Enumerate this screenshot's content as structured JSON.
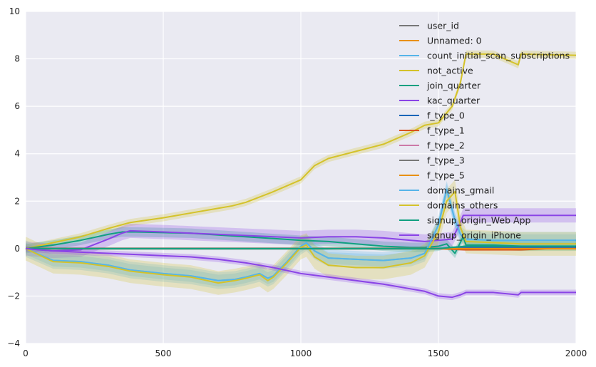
{
  "chart_data": {
    "type": "line",
    "title": "",
    "xlabel": "",
    "ylabel": "",
    "xlim": [
      0,
      2000
    ],
    "ylim": [
      -4,
      10
    ],
    "xticks": [
      0,
      500,
      1000,
      1500,
      2000
    ],
    "yticks": [
      -4,
      -2,
      0,
      2,
      4,
      6,
      8,
      10
    ],
    "grid": true,
    "legend_position": "top-right",
    "series": [
      {
        "name": "user_id",
        "color": "#777777",
        "x": [
          0,
          2000
        ],
        "y": [
          0,
          0
        ],
        "band": 0.02
      },
      {
        "name": "Unnamed: 0",
        "color": "#e8900f",
        "x": [
          0,
          2000
        ],
        "y": [
          0,
          0
        ],
        "band": 0.02
      },
      {
        "name": "count_initial_scan_subscriptions",
        "color": "#56b4e9",
        "x": [
          0,
          100,
          200,
          300,
          380,
          500,
          600,
          700,
          760,
          800,
          850,
          880,
          900,
          950,
          1000,
          1020,
          1050,
          1100,
          1200,
          1300,
          1400,
          1450,
          1480,
          1500,
          1530,
          1560,
          1580,
          1600,
          1700,
          1800,
          2000
        ],
        "y": [
          0,
          -0.5,
          -0.55,
          -0.7,
          -0.9,
          -1.05,
          -1.15,
          -1.35,
          -1.3,
          -1.2,
          -1.05,
          -1.25,
          -1.15,
          -0.55,
          0.1,
          0.25,
          -0.1,
          -0.4,
          -0.45,
          -0.5,
          -0.4,
          -0.2,
          0.5,
          1.0,
          2.5,
          1.2,
          0.6,
          0.4,
          0.35,
          0.35,
          0.35
        ],
        "band": 0.25
      },
      {
        "name": "not_active",
        "color": "#d4c22a",
        "x": [
          0,
          100,
          200,
          300,
          380,
          500,
          600,
          700,
          750,
          800,
          900,
          1000,
          1050,
          1100,
          1200,
          1300,
          1400,
          1450,
          1500,
          1550,
          1580,
          1600,
          1700,
          1790,
          1800,
          2000
        ],
        "y": [
          0,
          0.25,
          0.5,
          0.85,
          1.1,
          1.3,
          1.5,
          1.7,
          1.8,
          1.95,
          2.4,
          2.9,
          3.5,
          3.8,
          4.1,
          4.4,
          4.9,
          5.2,
          5.3,
          6.0,
          7.0,
          8.2,
          8.2,
          7.75,
          8.2,
          8.15
        ],
        "band": 0.15
      },
      {
        "name": "join_quarter",
        "color": "#10a080",
        "x": [
          0,
          100,
          200,
          300,
          350,
          400,
          600,
          800,
          1000,
          1100,
          1200,
          1300,
          1400,
          1450,
          1500,
          1530,
          1560,
          1590,
          1600,
          1700,
          1800,
          2000
        ],
        "y": [
          0,
          0.15,
          0.35,
          0.6,
          0.7,
          0.7,
          0.65,
          0.5,
          0.35,
          0.3,
          0.2,
          0.1,
          0.05,
          0.05,
          0.1,
          0.2,
          -0.2,
          0.5,
          0.15,
          0.15,
          0.1,
          0.1
        ],
        "band": 0.2
      },
      {
        "name": "kac_quarter",
        "color": "#8a44e6",
        "x": [
          0,
          100,
          200,
          300,
          350,
          380,
          500,
          600,
          800,
          1000,
          1100,
          1200,
          1300,
          1400,
          1450,
          1500,
          1550,
          1580,
          1590,
          1600,
          1700,
          1800,
          2000
        ],
        "y": [
          0,
          -0.1,
          -0.05,
          0.4,
          0.65,
          0.75,
          0.7,
          0.65,
          0.55,
          0.45,
          0.5,
          0.5,
          0.45,
          0.35,
          0.3,
          0.35,
          0.4,
          1.1,
          1.4,
          1.4,
          1.4,
          1.4,
          1.4
        ],
        "band": 0.3
      },
      {
        "name": "f_type_0",
        "color": "#1565b8",
        "x": [
          0,
          1500,
          1600,
          2000
        ],
        "y": [
          0,
          0,
          0.05,
          0.05
        ],
        "band": 0.05
      },
      {
        "name": "f_type_1",
        "color": "#d9531e",
        "x": [
          0,
          1500,
          1600,
          1800,
          1900,
          2000
        ],
        "y": [
          0,
          0,
          -0.05,
          -0.05,
          0,
          0
        ],
        "band": 0.05
      },
      {
        "name": "f_type_2",
        "color": "#cc79a7",
        "x": [
          0,
          2000
        ],
        "y": [
          0,
          0
        ],
        "band": 0.02
      },
      {
        "name": "f_type_3",
        "color": "#777777",
        "x": [
          0,
          2000
        ],
        "y": [
          0,
          0
        ],
        "band": 0.02
      },
      {
        "name": "f_type_5",
        "color": "#e8900f",
        "x": [
          0,
          2000
        ],
        "y": [
          0,
          0
        ],
        "band": 0.02
      },
      {
        "name": "domains_gmail",
        "color": "#56b4e9",
        "x": [
          0,
          100,
          200,
          300,
          380,
          500,
          600,
          700,
          760,
          800,
          850,
          880,
          900,
          950,
          1000,
          1020,
          1050,
          1100,
          1200,
          1300,
          1400,
          1450,
          1480,
          1500,
          1530,
          1560,
          1580,
          1600,
          1700,
          1800,
          2000
        ],
        "y": [
          0,
          -0.5,
          -0.55,
          -0.7,
          -0.9,
          -1.05,
          -1.15,
          -1.35,
          -1.3,
          -1.2,
          -1.05,
          -1.25,
          -1.15,
          -0.55,
          0.1,
          0.25,
          -0.1,
          -0.4,
          -0.45,
          -0.5,
          -0.4,
          -0.2,
          0.5,
          1.0,
          2.5,
          1.2,
          0.6,
          0.4,
          0.35,
          0.35,
          0.35
        ],
        "band": 0.35
      },
      {
        "name": "domains_others",
        "color": "#d4c22a",
        "x": [
          0,
          100,
          200,
          300,
          380,
          500,
          600,
          700,
          760,
          800,
          850,
          880,
          900,
          950,
          1000,
          1020,
          1050,
          1100,
          1200,
          1300,
          1400,
          1450,
          1480,
          1500,
          1530,
          1560,
          1580,
          1600,
          1700,
          1800,
          2000
        ],
        "y": [
          0,
          -0.55,
          -0.6,
          -0.75,
          -0.95,
          -1.1,
          -1.2,
          -1.45,
          -1.35,
          -1.25,
          -1.1,
          -1.35,
          -1.2,
          -0.6,
          0.05,
          0.15,
          -0.35,
          -0.7,
          -0.8,
          -0.8,
          -0.6,
          -0.3,
          0.3,
          0.7,
          2.0,
          2.4,
          0.9,
          0.3,
          0.25,
          0.2,
          0.2
        ],
        "band": 0.5
      },
      {
        "name": "signup_origin_Web App",
        "color": "#10a080",
        "x": [
          0,
          1500,
          1600,
          1700,
          2000
        ],
        "y": [
          0,
          0,
          0.1,
          0.1,
          0.1
        ],
        "band": 0.05
      },
      {
        "name": "signup_origin_iPhone",
        "color": "#8a44e6",
        "x": [
          0,
          100,
          200,
          300,
          400,
          500,
          600,
          700,
          800,
          900,
          1000,
          1100,
          1200,
          1300,
          1400,
          1450,
          1500,
          1550,
          1580,
          1600,
          1700,
          1790,
          1800,
          2000
        ],
        "y": [
          0,
          -0.1,
          -0.15,
          -0.2,
          -0.25,
          -0.3,
          -0.35,
          -0.45,
          -0.6,
          -0.8,
          -1.05,
          -1.2,
          -1.35,
          -1.5,
          -1.7,
          -1.8,
          -2.0,
          -2.05,
          -1.95,
          -1.85,
          -1.85,
          -1.95,
          -1.85,
          -1.85
        ],
        "band": 0.12
      }
    ]
  }
}
